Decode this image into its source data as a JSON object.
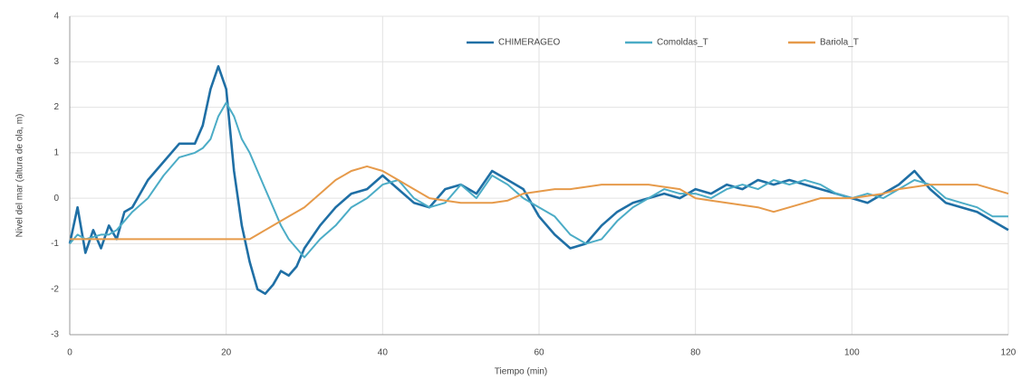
{
  "chart_data": {
    "type": "line",
    "xlabel": "Tiempo (min)",
    "ylabel": "Nivel del mar (altura de ola, m)",
    "x": [
      0,
      1,
      2,
      3,
      4,
      5,
      6,
      7,
      8,
      10,
      12,
      14,
      16,
      17,
      18,
      19,
      20,
      21,
      22,
      23,
      24,
      25,
      26,
      27,
      28,
      29,
      30,
      32,
      34,
      36,
      38,
      40,
      42,
      44,
      46,
      48,
      50,
      52,
      54,
      56,
      58,
      60,
      62,
      64,
      66,
      68,
      70,
      72,
      74,
      76,
      78,
      80,
      82,
      84,
      86,
      88,
      90,
      92,
      94,
      96,
      98,
      100,
      102,
      104,
      106,
      108,
      110,
      112,
      114,
      116,
      118,
      120
    ],
    "series": [
      {
        "name": "CHIMERAGEO",
        "color": "#1f6fa5",
        "values": [
          -1.0,
          -0.2,
          -1.2,
          -0.7,
          -1.1,
          -0.6,
          -0.9,
          -0.3,
          -0.2,
          0.4,
          0.8,
          1.2,
          1.2,
          1.6,
          2.4,
          2.9,
          2.4,
          0.6,
          -0.6,
          -1.4,
          -2.0,
          -2.1,
          -1.9,
          -1.6,
          -1.7,
          -1.5,
          -1.1,
          -0.6,
          -0.2,
          0.1,
          0.2,
          0.5,
          0.2,
          -0.1,
          -0.2,
          0.2,
          0.3,
          0.1,
          0.6,
          0.4,
          0.2,
          -0.4,
          -0.8,
          -1.1,
          -1.0,
          -0.6,
          -0.3,
          -0.1,
          0.0,
          0.1,
          0.0,
          0.2,
          0.1,
          0.3,
          0.2,
          0.4,
          0.3,
          0.4,
          0.3,
          0.2,
          0.1,
          0.0,
          -0.1,
          0.1,
          0.3,
          0.6,
          0.2,
          -0.1,
          -0.2,
          -0.3,
          -0.5,
          -0.7
        ]
      },
      {
        "name": "Comoldas_T",
        "color": "#4bacc6",
        "values": [
          -1.0,
          -0.8,
          -0.9,
          -0.85,
          -0.8,
          -0.8,
          -0.7,
          -0.5,
          -0.3,
          0.0,
          0.5,
          0.9,
          1.0,
          1.1,
          1.3,
          1.8,
          2.1,
          1.8,
          1.3,
          1.0,
          0.6,
          0.2,
          -0.2,
          -0.6,
          -0.9,
          -1.1,
          -1.3,
          -0.9,
          -0.6,
          -0.2,
          0.0,
          0.3,
          0.4,
          0.0,
          -0.2,
          -0.1,
          0.3,
          0.0,
          0.5,
          0.3,
          0.0,
          -0.2,
          -0.4,
          -0.8,
          -1.0,
          -0.9,
          -0.5,
          -0.2,
          0.0,
          0.2,
          0.1,
          0.1,
          0.0,
          0.2,
          0.3,
          0.2,
          0.4,
          0.3,
          0.4,
          0.3,
          0.1,
          0.0,
          0.1,
          0.0,
          0.2,
          0.4,
          0.3,
          0.0,
          -0.1,
          -0.2,
          -0.4,
          -0.4
        ]
      },
      {
        "name": "Bariola_T",
        "color": "#e69a4a",
        "values": [
          -0.9,
          -0.9,
          -0.9,
          -0.9,
          -0.9,
          -0.9,
          -0.9,
          -0.9,
          -0.9,
          -0.9,
          -0.9,
          -0.9,
          -0.9,
          -0.9,
          -0.9,
          -0.9,
          -0.9,
          -0.9,
          -0.9,
          -0.9,
          -0.8,
          -0.7,
          -0.6,
          -0.5,
          -0.4,
          -0.3,
          -0.2,
          0.1,
          0.4,
          0.6,
          0.7,
          0.6,
          0.4,
          0.2,
          0.0,
          -0.05,
          -0.1,
          -0.1,
          -0.1,
          -0.05,
          0.1,
          0.15,
          0.2,
          0.2,
          0.25,
          0.3,
          0.3,
          0.3,
          0.3,
          0.25,
          0.2,
          0.0,
          -0.05,
          -0.1,
          -0.15,
          -0.2,
          -0.3,
          -0.2,
          -0.1,
          0.0,
          0.0,
          0.0,
          0.05,
          0.1,
          0.2,
          0.25,
          0.3,
          0.3,
          0.3,
          0.3,
          0.2,
          0.1
        ]
      }
    ],
    "xlim": [
      0,
      120
    ],
    "xticks": [
      0,
      20,
      40,
      60,
      80,
      100,
      120
    ],
    "ylim": [
      -3,
      4
    ],
    "yticks": [
      -3,
      -2,
      -1,
      0,
      1,
      2,
      3,
      4
    ],
    "grid": true,
    "legend": "top"
  }
}
